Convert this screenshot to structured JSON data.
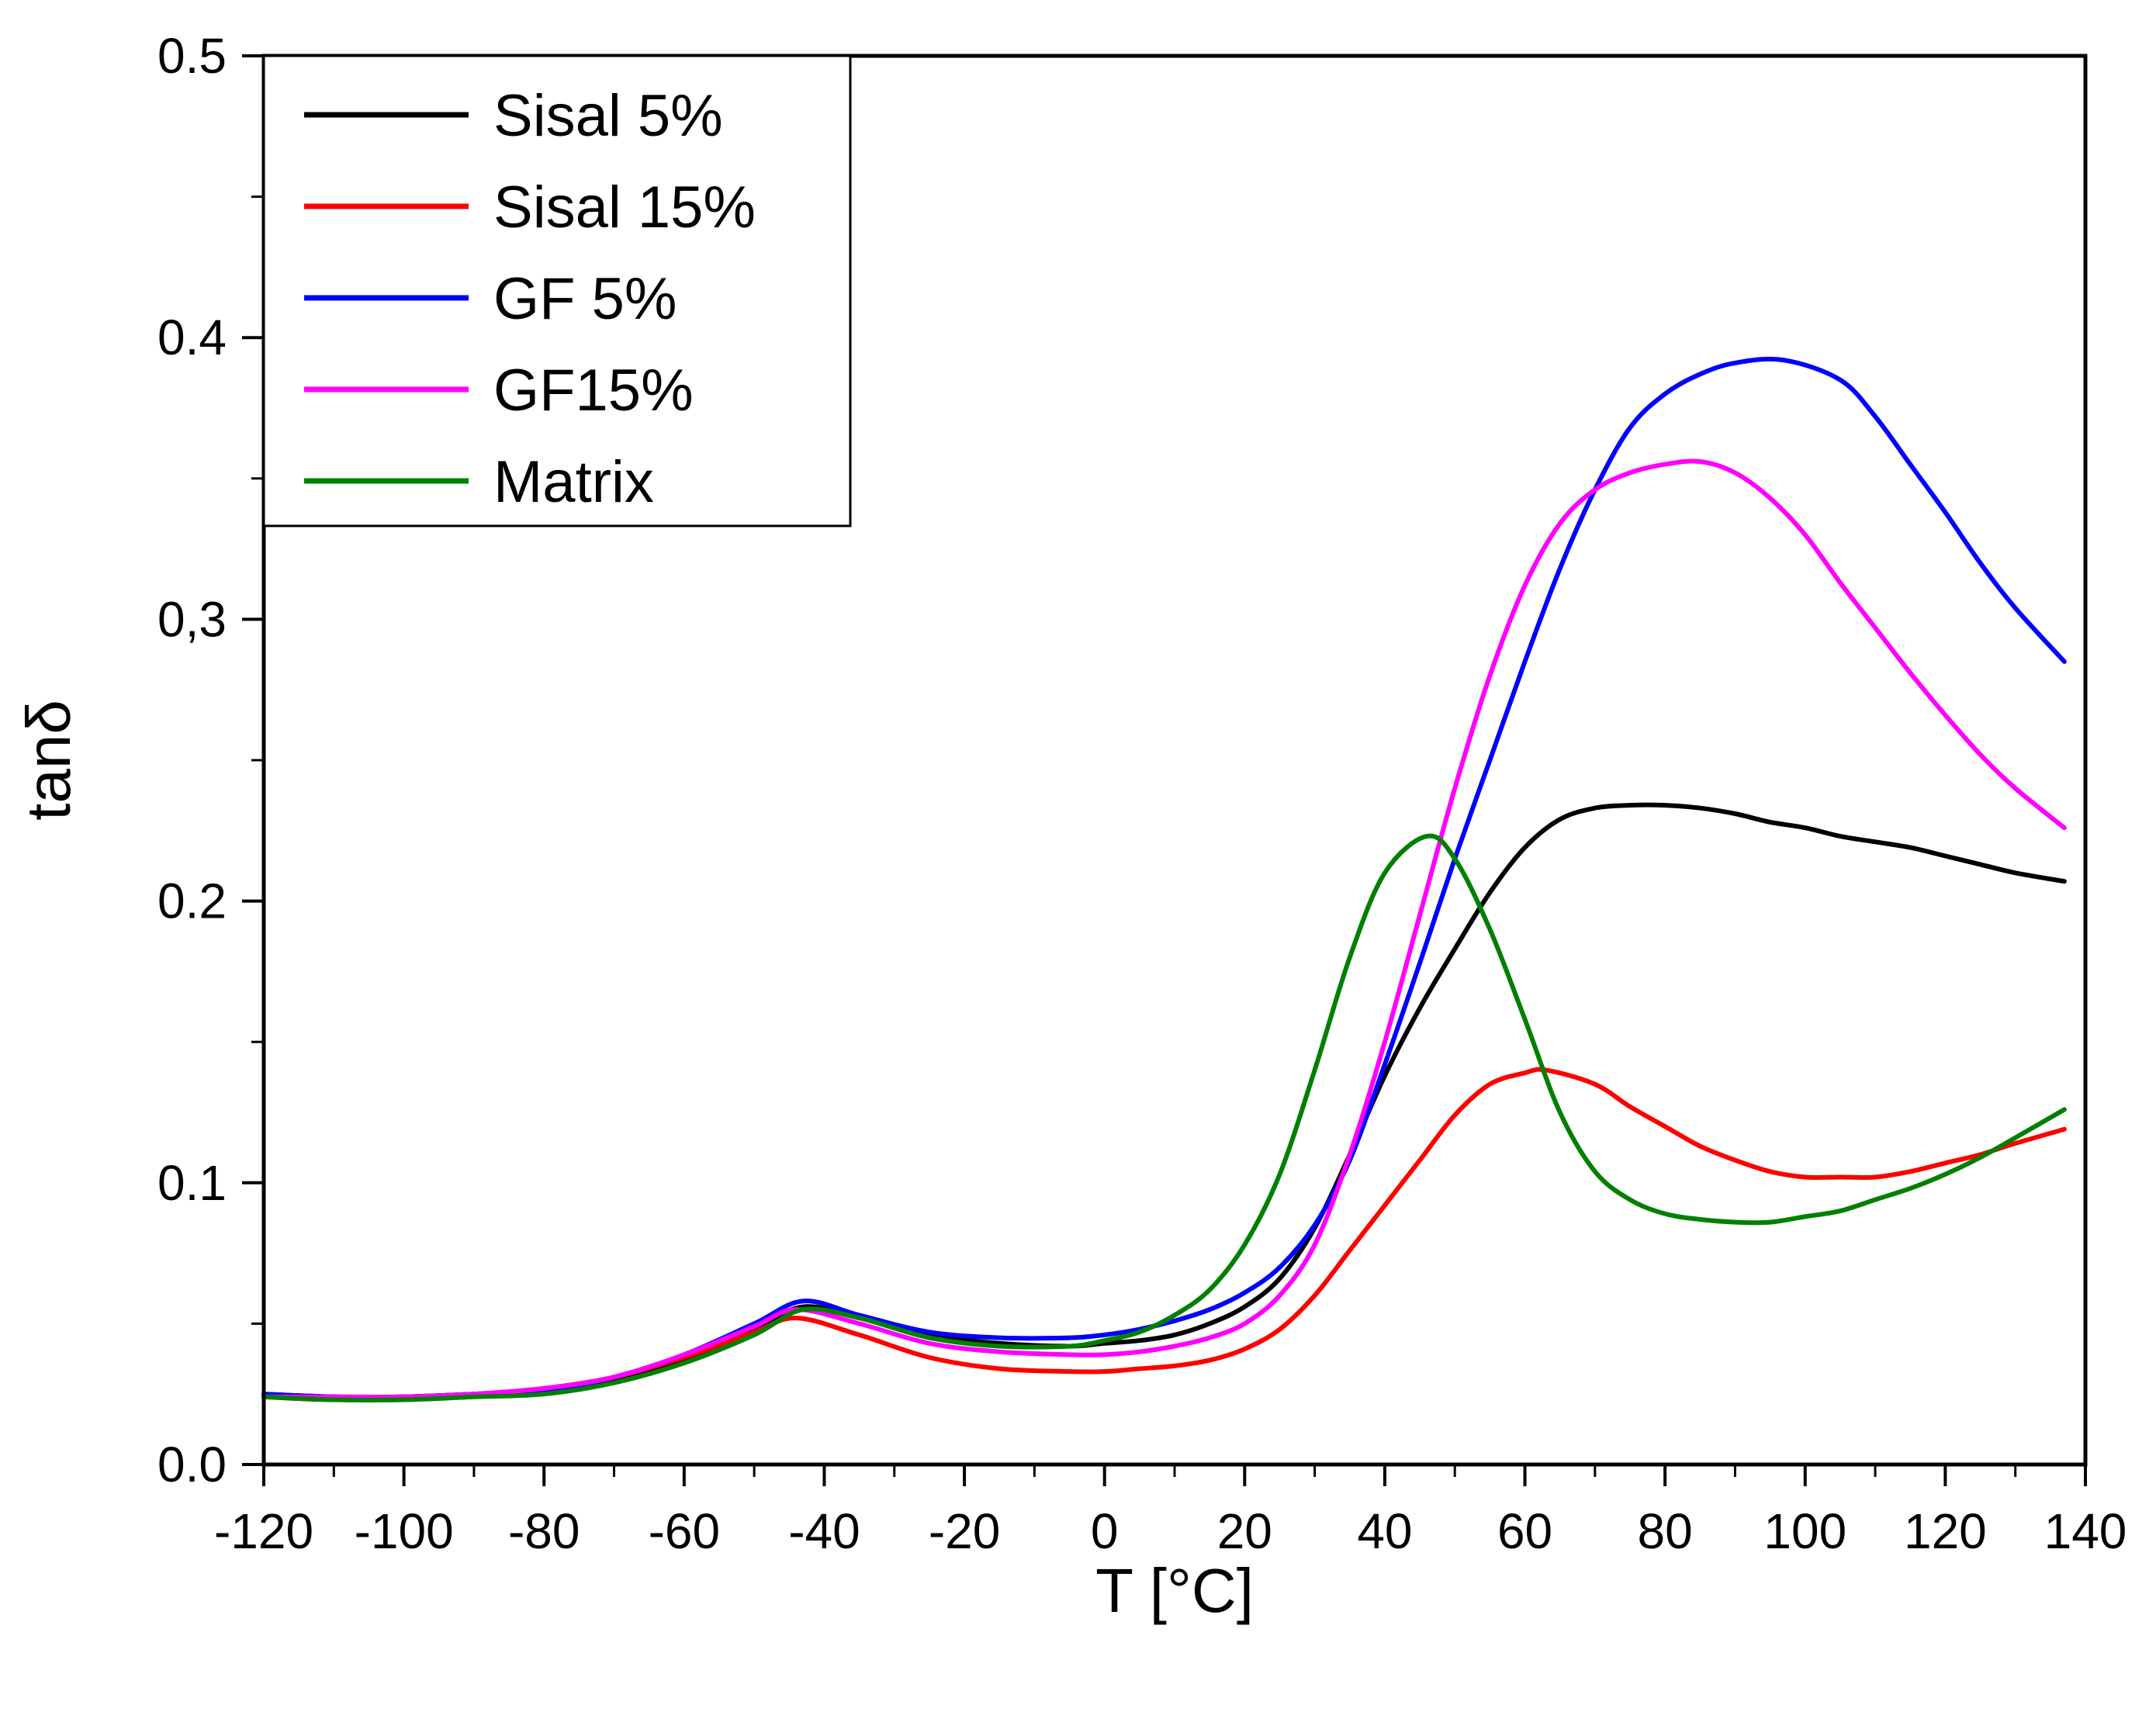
{
  "chart_data": {
    "type": "line",
    "title": "",
    "xlabel": "T [°C]",
    "ylabel": "tanδ",
    "xlim": [
      -120,
      140
    ],
    "ylim": [
      0.0,
      0.5
    ],
    "x_ticks": [
      -120,
      -100,
      -80,
      -60,
      -40,
      -20,
      0,
      20,
      40,
      60,
      80,
      100,
      120,
      140
    ],
    "x_tick_labels": [
      "-120",
      "-100",
      "-80",
      "-60",
      "-40",
      "-20",
      "0",
      "20",
      "40",
      "60",
      "80",
      "100",
      "120",
      "140"
    ],
    "y_ticks": [
      0.0,
      0.1,
      0.2,
      0.3,
      0.4,
      0.5
    ],
    "y_tick_labels": [
      "0.0",
      "0.1",
      "0.2",
      "0,3",
      "0.4",
      "0.5"
    ],
    "grid": false,
    "legend_position": "top-left",
    "series": [
      {
        "name": "Sisal 5%",
        "color": "#000000",
        "x": [
          -120,
          -110,
          -100,
          -90,
          -80,
          -70,
          -60,
          -50,
          -43,
          -35,
          -25,
          -15,
          -5,
          0,
          5,
          10,
          15,
          20,
          25,
          30,
          35,
          40,
          45,
          50,
          55,
          60,
          65,
          70,
          75,
          80,
          85,
          90,
          95,
          100,
          105,
          110,
          115,
          120,
          125,
          130,
          137
        ],
        "y": [
          0.025,
          0.024,
          0.024,
          0.025,
          0.026,
          0.03,
          0.037,
          0.048,
          0.056,
          0.052,
          0.046,
          0.043,
          0.042,
          0.043,
          0.044,
          0.046,
          0.05,
          0.056,
          0.066,
          0.084,
          0.11,
          0.138,
          0.162,
          0.183,
          0.203,
          0.219,
          0.229,
          0.233,
          0.234,
          0.234,
          0.233,
          0.231,
          0.228,
          0.226,
          0.223,
          0.221,
          0.219,
          0.216,
          0.213,
          0.21,
          0.207
        ]
      },
      {
        "name": "Sisal 15%",
        "color": "#ff0000",
        "x": [
          -120,
          -110,
          -100,
          -90,
          -80,
          -70,
          -60,
          -50,
          -44,
          -35,
          -25,
          -15,
          -5,
          0,
          5,
          10,
          15,
          20,
          25,
          30,
          35,
          40,
          45,
          50,
          55,
          60,
          63,
          70,
          75,
          80,
          85,
          90,
          95,
          100,
          105,
          110,
          115,
          120,
          125,
          130,
          137
        ],
        "y": [
          0.024,
          0.023,
          0.024,
          0.025,
          0.027,
          0.031,
          0.038,
          0.047,
          0.052,
          0.046,
          0.038,
          0.034,
          0.033,
          0.033,
          0.034,
          0.035,
          0.037,
          0.041,
          0.048,
          0.06,
          0.076,
          0.092,
          0.108,
          0.124,
          0.135,
          0.139,
          0.14,
          0.135,
          0.127,
          0.12,
          0.113,
          0.108,
          0.104,
          0.102,
          0.102,
          0.102,
          0.104,
          0.107,
          0.11,
          0.114,
          0.119
        ]
      },
      {
        "name": "GF 5%",
        "color": "#0000ff",
        "x": [
          -120,
          -110,
          -100,
          -90,
          -80,
          -70,
          -60,
          -50,
          -43,
          -35,
          -25,
          -15,
          -5,
          0,
          5,
          10,
          15,
          20,
          25,
          30,
          35,
          40,
          45,
          50,
          55,
          60,
          65,
          70,
          75,
          80,
          85,
          90,
          97,
          105,
          110,
          115,
          120,
          125,
          130,
          137
        ],
        "y": [
          0.025,
          0.024,
          0.024,
          0.025,
          0.026,
          0.031,
          0.039,
          0.05,
          0.058,
          0.053,
          0.047,
          0.045,
          0.045,
          0.046,
          0.048,
          0.051,
          0.055,
          0.061,
          0.07,
          0.085,
          0.108,
          0.142,
          0.178,
          0.215,
          0.25,
          0.285,
          0.318,
          0.346,
          0.368,
          0.38,
          0.387,
          0.391,
          0.392,
          0.385,
          0.372,
          0.355,
          0.338,
          0.32,
          0.304,
          0.285
        ]
      },
      {
        "name": "GF15%",
        "color": "#ff00ff",
        "x": [
          -120,
          -110,
          -100,
          -90,
          -80,
          -70,
          -60,
          -50,
          -44,
          -35,
          -25,
          -15,
          -5,
          0,
          5,
          10,
          15,
          20,
          25,
          30,
          35,
          40,
          45,
          50,
          55,
          60,
          65,
          70,
          75,
          80,
          85,
          90,
          95,
          100,
          105,
          110,
          115,
          120,
          125,
          130,
          137
        ],
        "y": [
          0.024,
          0.024,
          0.024,
          0.025,
          0.027,
          0.031,
          0.039,
          0.049,
          0.055,
          0.05,
          0.043,
          0.04,
          0.039,
          0.039,
          0.04,
          0.042,
          0.045,
          0.05,
          0.06,
          0.078,
          0.11,
          0.15,
          0.195,
          0.24,
          0.28,
          0.312,
          0.334,
          0.346,
          0.352,
          0.355,
          0.356,
          0.352,
          0.343,
          0.33,
          0.313,
          0.297,
          0.281,
          0.266,
          0.252,
          0.24,
          0.226
        ]
      },
      {
        "name": "Matrix",
        "color": "#008000",
        "x": [
          -120,
          -110,
          -100,
          -90,
          -80,
          -70,
          -60,
          -50,
          -43,
          -35,
          -25,
          -15,
          -5,
          0,
          5,
          10,
          15,
          20,
          25,
          30,
          35,
          40,
          46,
          50,
          55,
          60,
          65,
          70,
          75,
          80,
          85,
          90,
          95,
          100,
          105,
          110,
          115,
          120,
          125,
          130,
          137
        ],
        "y": [
          0.024,
          0.023,
          0.023,
          0.024,
          0.025,
          0.029,
          0.036,
          0.046,
          0.055,
          0.052,
          0.045,
          0.042,
          0.042,
          0.044,
          0.047,
          0.053,
          0.062,
          0.078,
          0.103,
          0.14,
          0.18,
          0.21,
          0.223,
          0.215,
          0.19,
          0.158,
          0.125,
          0.104,
          0.094,
          0.089,
          0.087,
          0.086,
          0.086,
          0.088,
          0.09,
          0.094,
          0.098,
          0.103,
          0.109,
          0.116,
          0.126
        ]
      }
    ]
  }
}
